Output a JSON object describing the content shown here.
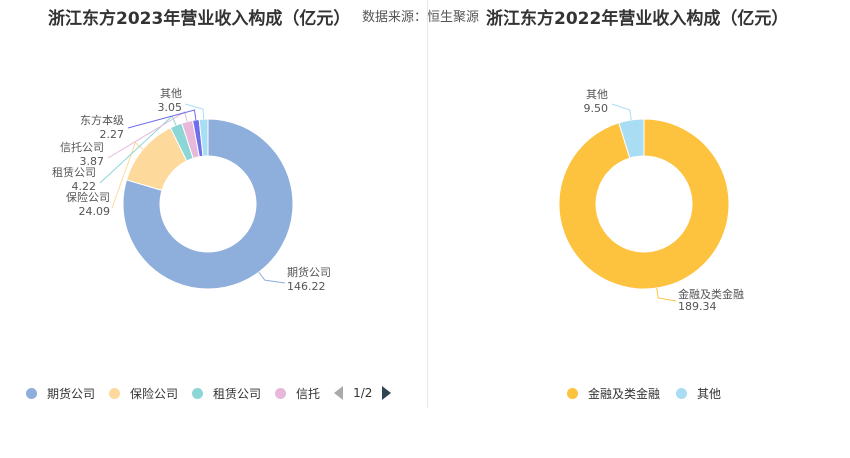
{
  "header": {
    "title_left": "浙江东方2023年营业收入构成（亿元）",
    "source": "数据来源：恒生聚源",
    "title_right": "浙江东方2022年营业收入构成（亿元）"
  },
  "chart_data": [
    {
      "type": "pie",
      "title": "浙江东方2023年营业收入构成（亿元）",
      "categories": [
        "期货公司",
        "保险公司",
        "租赁公司",
        "信托公司",
        "东方本级",
        "其他"
      ],
      "values": [
        146.22,
        24.09,
        4.22,
        3.87,
        2.27,
        3.05
      ],
      "colors": [
        "#8eaedc",
        "#fdd99b",
        "#8dd6d6",
        "#e7b8dc",
        "#6d6ee8",
        "#a8ddf4"
      ],
      "legend_visible": [
        "期货公司",
        "保险公司",
        "租赁公司",
        "信托"
      ],
      "legend_page": "1/2",
      "legend_placement": "bottom"
    },
    {
      "type": "pie",
      "title": "浙江东方2022年营业收入构成（亿元）",
      "categories": [
        "金融及类金融",
        "其他"
      ],
      "values": [
        189.34,
        9.5
      ],
      "colors": [
        "#fdc23e",
        "#a8ddf4"
      ],
      "legend_visible": [
        "金融及类金融",
        "其他"
      ],
      "legend_placement": "bottom"
    }
  ]
}
